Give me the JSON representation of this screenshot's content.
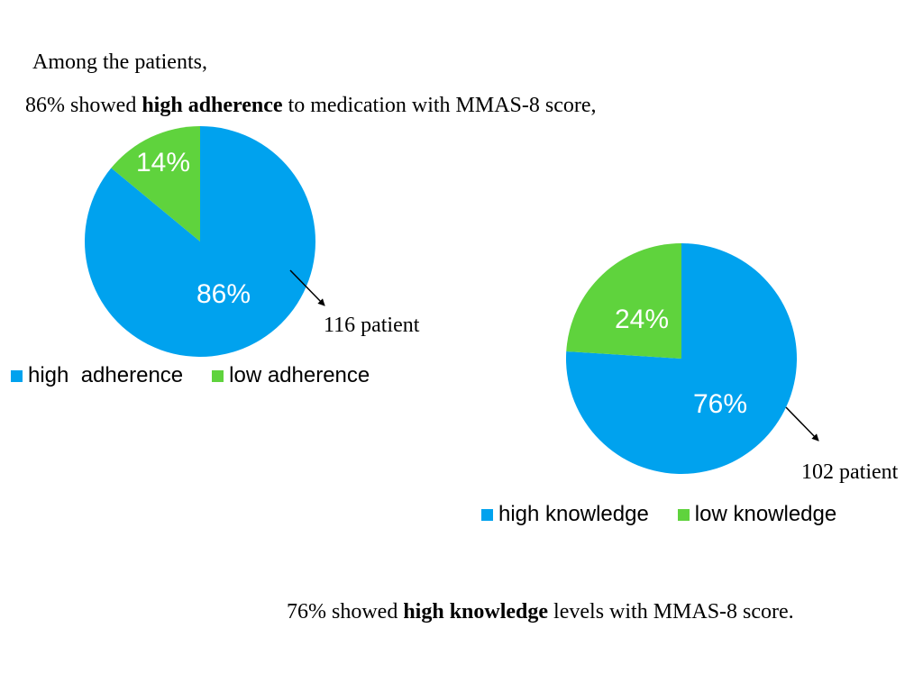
{
  "text": {
    "intro": "Among the patients,",
    "adherence_prefix": "86% showed ",
    "adherence_bold": "high adherence",
    "adherence_suffix": " to medication with MMAS-8 score,",
    "knowledge_prefix": "76% showed ",
    "knowledge_bold": "high knowledge",
    "knowledge_suffix": " levels with MMAS-8 score."
  },
  "chart_data": [
    {
      "type": "pie",
      "slices": [
        {
          "label": "high  adherence",
          "value": 86,
          "display": "86%",
          "color": "#00a2ee"
        },
        {
          "label": "low adherence",
          "value": 14,
          "display": "14%",
          "color": "#5fd33d"
        }
      ],
      "annotation": "116 patient",
      "legend_position": "bottom"
    },
    {
      "type": "pie",
      "slices": [
        {
          "label": "high knowledge",
          "value": 76,
          "display": "76%",
          "color": "#00a2ee"
        },
        {
          "label": "low knowledge",
          "value": 24,
          "display": "24%",
          "color": "#5fd33d"
        }
      ],
      "annotation": "102 patient",
      "legend_position": "bottom"
    }
  ]
}
